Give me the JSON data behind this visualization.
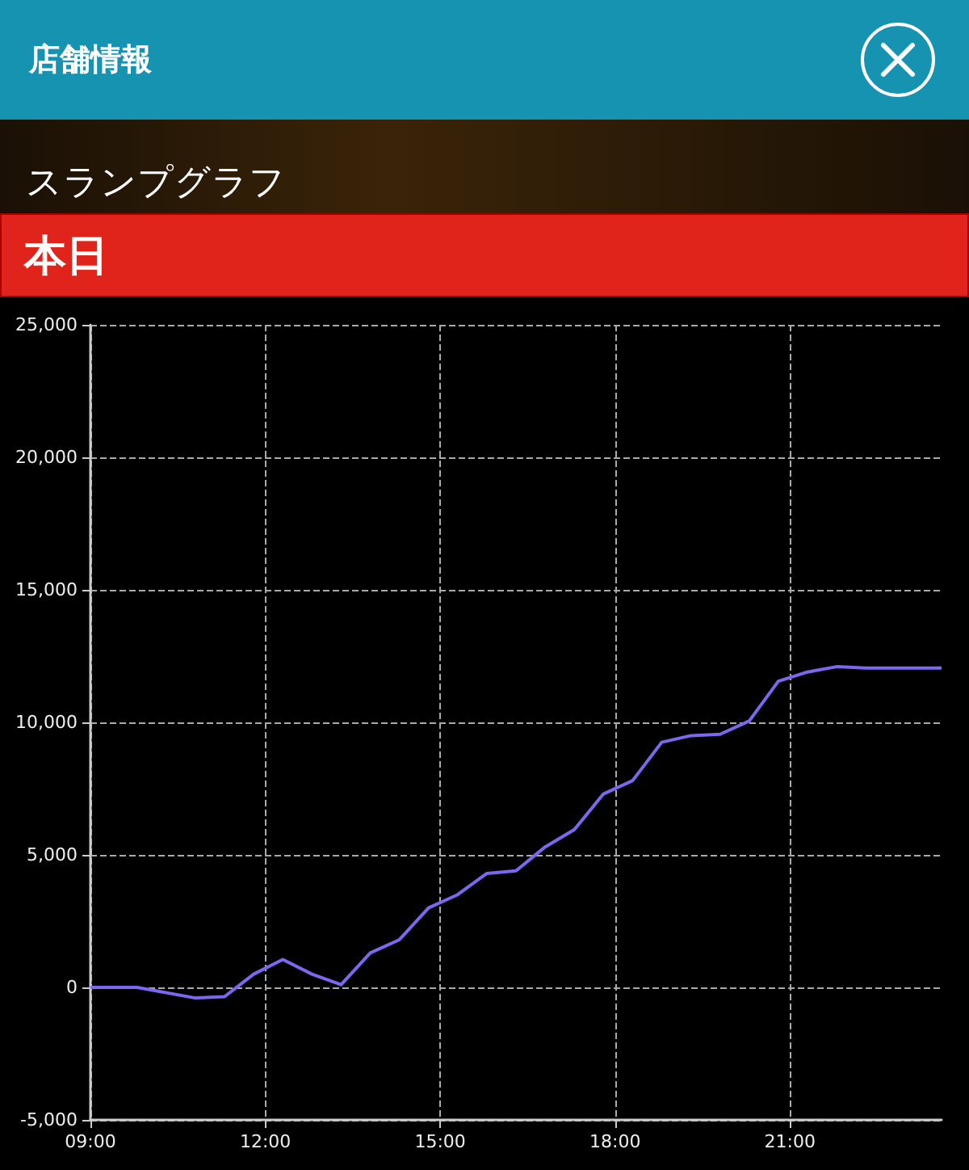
{
  "chart_data": {
    "type": "line",
    "title": "スランプグラフ",
    "subtitle": "本日",
    "annotations": [
      "店舗情報"
    ],
    "x": [
      9,
      9.8,
      10.8,
      11.3,
      11.8,
      12.3,
      12.8,
      13.3,
      13.8,
      14.3,
      14.8,
      15.3,
      15.8,
      16.3,
      16.8,
      17.3,
      17.8,
      18.3,
      18.8,
      19.3,
      19.8,
      20.3,
      20.8,
      21.3,
      21.8,
      22.3,
      23.6
    ],
    "series": [
      {
        "color": "#7b68ee",
        "values": [
          0,
          0,
          -400,
          -350,
          500,
          1050,
          500,
          100,
          1300,
          1800,
          3000,
          3500,
          4300,
          4400,
          5300,
          5950,
          7300,
          7800,
          9250,
          9500,
          9550,
          10050,
          11550,
          11900,
          12100,
          12050,
          12050
        ]
      }
    ],
    "xlim": [
      9,
      23.6
    ],
    "xticks": [
      {
        "value": 9,
        "label": "09:00"
      },
      {
        "value": 12,
        "label": "12:00"
      },
      {
        "value": 15,
        "label": "15:00"
      },
      {
        "value": 18,
        "label": "18:00"
      },
      {
        "value": 21,
        "label": "21:00"
      }
    ],
    "ylim": [
      -5000,
      25000
    ],
    "yticks": [
      {
        "value": -5000,
        "label": "-5,000"
      },
      0,
      {
        "value": 5000,
        "label": "5,000"
      },
      {
        "value": 10000,
        "label": "10,000"
      },
      {
        "value": 15000,
        "label": "15,000"
      },
      {
        "value": 20000,
        "label": "20,000"
      },
      {
        "value": 25000,
        "label": "25,000"
      }
    ],
    "grid": true,
    "marker": "none",
    "line_style": "solid"
  }
}
